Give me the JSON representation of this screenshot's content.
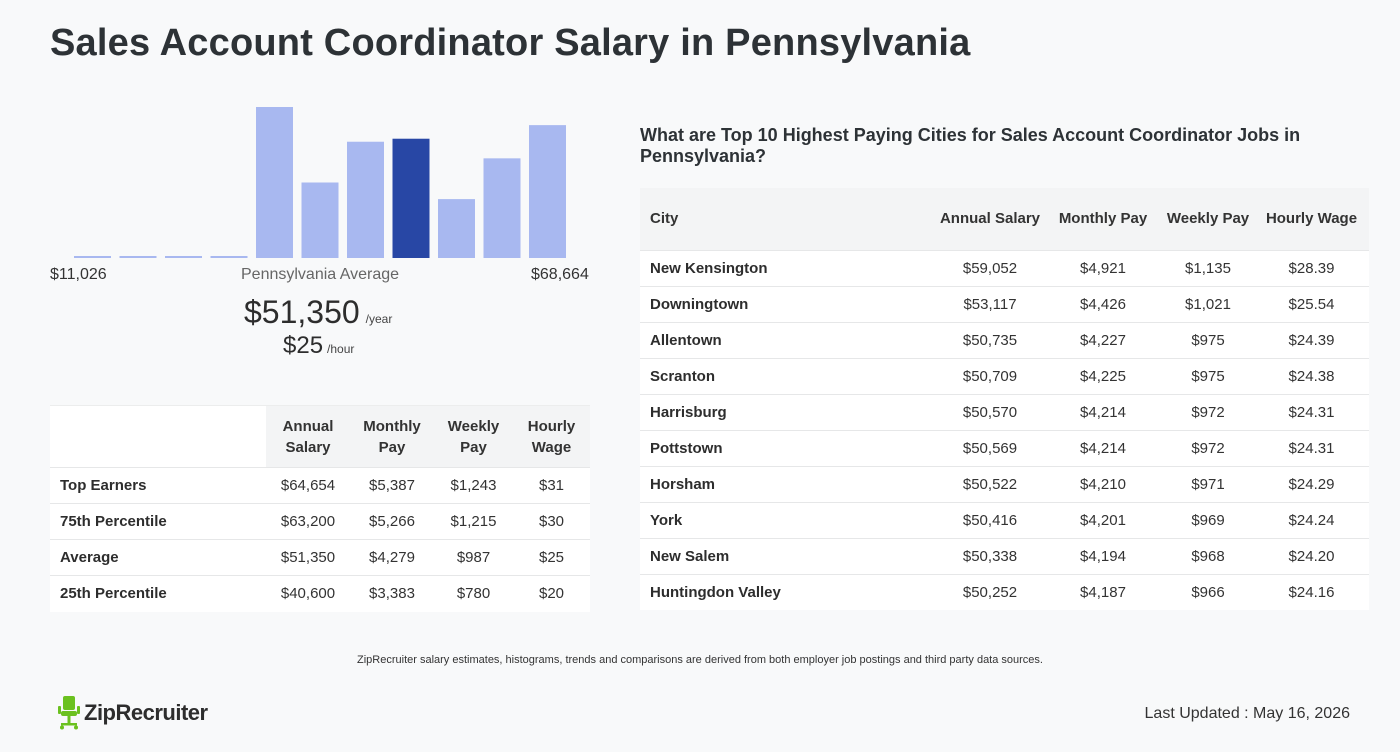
{
  "page": {
    "title": "Sales Account Coordinator Salary in Pennsylvania"
  },
  "histogram": {
    "min_label": "$11,026",
    "max_label": "$68,664",
    "center_label": "Pennsylvania Average",
    "highlight_index": 7,
    "bar_color": "#a8b8f0",
    "highlight_color": "#2847a5",
    "ymax": 100,
    "values": [
      1,
      1,
      1,
      1,
      100,
      50,
      77,
      79,
      39,
      66,
      88
    ]
  },
  "average": {
    "annual": "$51,350",
    "annual_unit": "/year",
    "hourly": "$25",
    "hourly_unit": "/hour"
  },
  "percentile_table": {
    "headers": [
      "Annual Salary",
      "Monthly Pay",
      "Weekly Pay",
      "Hourly Wage"
    ],
    "rows": [
      {
        "label": "Top Earners",
        "annual": "$64,654",
        "monthly": "$5,387",
        "weekly": "$1,243",
        "hourly": "$31"
      },
      {
        "label": "75th Percentile",
        "annual": "$63,200",
        "monthly": "$5,266",
        "weekly": "$1,215",
        "hourly": "$30"
      },
      {
        "label": "Average",
        "annual": "$51,350",
        "monthly": "$4,279",
        "weekly": "$987",
        "hourly": "$25"
      },
      {
        "label": "25th Percentile",
        "annual": "$40,600",
        "monthly": "$3,383",
        "weekly": "$780",
        "hourly": "$20"
      }
    ]
  },
  "cities": {
    "title": "What are Top 10 Highest Paying Cities for Sales Account Coordinator Jobs in Pennsylvania?",
    "headers": [
      "City",
      "Annual Salary",
      "Monthly Pay",
      "Weekly Pay",
      "Hourly Wage"
    ],
    "rows": [
      {
        "city": "New Kensington",
        "annual": "$59,052",
        "monthly": "$4,921",
        "weekly": "$1,135",
        "hourly": "$28.39"
      },
      {
        "city": "Downingtown",
        "annual": "$53,117",
        "monthly": "$4,426",
        "weekly": "$1,021",
        "hourly": "$25.54"
      },
      {
        "city": "Allentown",
        "annual": "$50,735",
        "monthly": "$4,227",
        "weekly": "$975",
        "hourly": "$24.39"
      },
      {
        "city": "Scranton",
        "annual": "$50,709",
        "monthly": "$4,225",
        "weekly": "$975",
        "hourly": "$24.38"
      },
      {
        "city": "Harrisburg",
        "annual": "$50,570",
        "monthly": "$4,214",
        "weekly": "$972",
        "hourly": "$24.31"
      },
      {
        "city": "Pottstown",
        "annual": "$50,569",
        "monthly": "$4,214",
        "weekly": "$972",
        "hourly": "$24.31"
      },
      {
        "city": "Horsham",
        "annual": "$50,522",
        "monthly": "$4,210",
        "weekly": "$971",
        "hourly": "$24.29"
      },
      {
        "city": "York",
        "annual": "$50,416",
        "monthly": "$4,201",
        "weekly": "$969",
        "hourly": "$24.24"
      },
      {
        "city": "New Salem",
        "annual": "$50,338",
        "monthly": "$4,194",
        "weekly": "$968",
        "hourly": "$24.20"
      },
      {
        "city": "Huntingdon Valley",
        "annual": "$50,252",
        "monthly": "$4,187",
        "weekly": "$966",
        "hourly": "$24.16"
      }
    ]
  },
  "footer": {
    "disclaimer": "ZipRecruiter salary estimates, histograms, trends and comparisons are derived from both employer job postings and third party data sources.",
    "logo_text": "ZipRecruiter",
    "logo_color": "#6bc11f",
    "last_updated": "Last Updated : May 16, 2026"
  }
}
